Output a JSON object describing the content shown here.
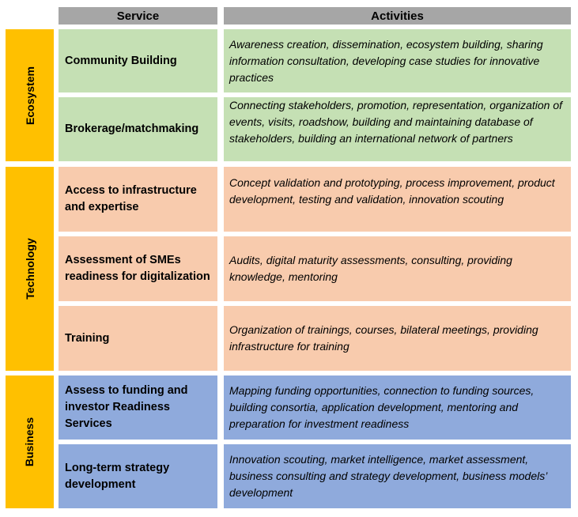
{
  "header": {
    "service": "Service",
    "activities": "Activities"
  },
  "categories": [
    {
      "label": "Ecosystem"
    },
    {
      "label": "Technology"
    },
    {
      "label": "Business"
    }
  ],
  "rows": [
    {
      "service": "Community Building",
      "activities": "Awareness creation, dissemination, ecosystem building, sharing information consultation, developing case studies for innovative practices"
    },
    {
      "service": "Brokerage/matchmaking",
      "activities": "Connecting stakeholders, promotion, representation, organization of events, visits, roadshow, building and maintaining database of stakeholders, building an international network of partners"
    },
    {
      "service": "Access to infrastructure and expertise",
      "activities": "Concept validation and prototyping, process improvement, product development, testing and validation, innovation scouting"
    },
    {
      "service": "Assessment of SMEs readiness for digitalization",
      "activities": "Audits, digital maturity assessments, consulting, providing knowledge, mentoring"
    },
    {
      "service": "Training",
      "activities": "Organization of trainings, courses, bilateral meetings, providing infrastructure for training"
    },
    {
      "service": "Assess to funding and investor Readiness Services",
      "activities": "Mapping funding opportunities, connection to funding sources, building consortia, application development, mentoring and preparation for investment readiness"
    },
    {
      "service": "Long-term strategy development",
      "activities": "Innovation scouting, market intelligence, market assessment, business consulting and strategy development, business models’ development"
    }
  ],
  "colors": {
    "header": "#a6a6a6",
    "category": "#ffc000",
    "ecosystem_rows": "#c5e0b4",
    "technology_rows": "#f8cbad",
    "business_rows": "#8faadc"
  }
}
